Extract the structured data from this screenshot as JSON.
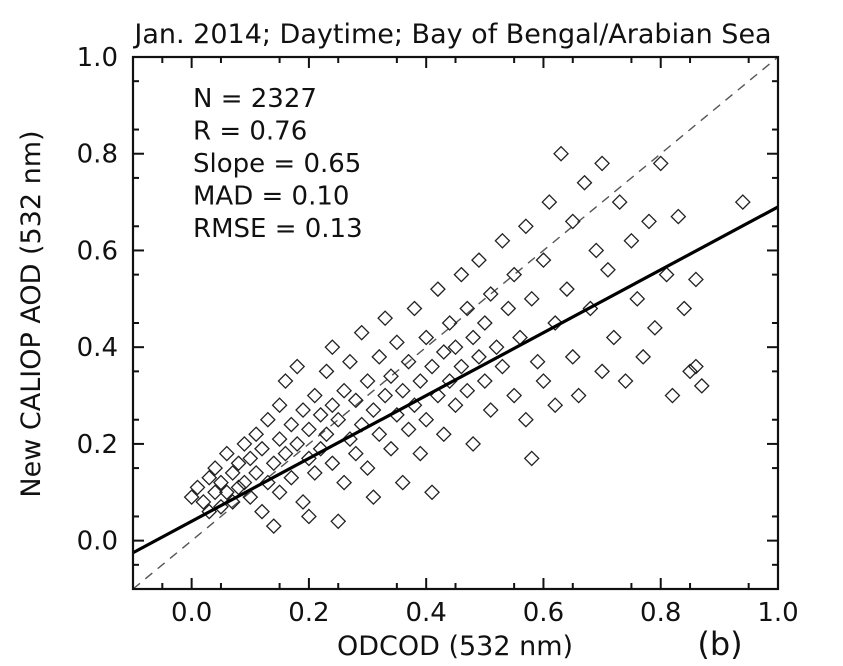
{
  "chart_data": {
    "type": "scatter",
    "title": "Jan. 2014; Daytime; Bay of Bengal/Arabian Sea",
    "xlabel": "ODCOD (532 nm)",
    "ylabel": "New CALIOP AOD (532 nm)",
    "xlim": [
      -0.1,
      1.0
    ],
    "ylim": [
      -0.1,
      1.0
    ],
    "x_ticks": [
      0.0,
      0.2,
      0.4,
      0.6,
      0.8,
      1.0
    ],
    "y_ticks": [
      0.0,
      0.2,
      0.4,
      0.6,
      0.8,
      1.0
    ],
    "x_tick_labels": [
      "0.0",
      "0.2",
      "0.4",
      "0.6",
      "0.8",
      "1.0"
    ],
    "y_tick_labels": [
      "0.0",
      "0.2",
      "0.4",
      "0.6",
      "0.8",
      "1.0"
    ],
    "stats": [
      "N = 2327",
      "R = 0.76",
      "Slope = 0.65",
      "MAD = 0.10",
      "RMSE = 0.13"
    ],
    "panel_label": "(b)",
    "marker": "open-diamond",
    "grid": false,
    "fit_line": {
      "slope": 0.65,
      "intercept": 0.04,
      "x_range": [
        -0.1,
        1.0
      ]
    },
    "reference_line": {
      "type": "1:1",
      "x_range": [
        -0.1,
        1.0
      ]
    },
    "points": [
      [
        0.0,
        0.09
      ],
      [
        0.01,
        0.11
      ],
      [
        0.02,
        0.08
      ],
      [
        0.03,
        0.13
      ],
      [
        0.03,
        0.06
      ],
      [
        0.04,
        0.1
      ],
      [
        0.04,
        0.15
      ],
      [
        0.05,
        0.12
      ],
      [
        0.05,
        0.07
      ],
      [
        0.06,
        0.18
      ],
      [
        0.06,
        0.1
      ],
      [
        0.07,
        0.14
      ],
      [
        0.07,
        0.08
      ],
      [
        0.08,
        0.16
      ],
      [
        0.08,
        0.11
      ],
      [
        0.09,
        0.2
      ],
      [
        0.09,
        0.12
      ],
      [
        0.1,
        0.09
      ],
      [
        0.1,
        0.17
      ],
      [
        0.11,
        0.14
      ],
      [
        0.11,
        0.22
      ],
      [
        0.12,
        0.06
      ],
      [
        0.12,
        0.19
      ],
      [
        0.13,
        0.12
      ],
      [
        0.13,
        0.25
      ],
      [
        0.14,
        0.03
      ],
      [
        0.14,
        0.16
      ],
      [
        0.15,
        0.21
      ],
      [
        0.15,
        0.28
      ],
      [
        0.15,
        0.1
      ],
      [
        0.16,
        0.18
      ],
      [
        0.16,
        0.33
      ],
      [
        0.17,
        0.24
      ],
      [
        0.17,
        0.13
      ],
      [
        0.18,
        0.36
      ],
      [
        0.18,
        0.2
      ],
      [
        0.19,
        0.27
      ],
      [
        0.19,
        0.08
      ],
      [
        0.2,
        0.17
      ],
      [
        0.2,
        0.23
      ],
      [
        0.2,
        0.05
      ],
      [
        0.21,
        0.3
      ],
      [
        0.21,
        0.14
      ],
      [
        0.22,
        0.26
      ],
      [
        0.22,
        0.19
      ],
      [
        0.23,
        0.35
      ],
      [
        0.23,
        0.22
      ],
      [
        0.24,
        0.4
      ],
      [
        0.24,
        0.16
      ],
      [
        0.24,
        0.28
      ],
      [
        0.25,
        0.04
      ],
      [
        0.25,
        0.25
      ],
      [
        0.26,
        0.31
      ],
      [
        0.26,
        0.12
      ],
      [
        0.27,
        0.21
      ],
      [
        0.27,
        0.37
      ],
      [
        0.28,
        0.18
      ],
      [
        0.28,
        0.29
      ],
      [
        0.29,
        0.43
      ],
      [
        0.29,
        0.24
      ],
      [
        0.3,
        0.15
      ],
      [
        0.3,
        0.33
      ],
      [
        0.31,
        0.27
      ],
      [
        0.31,
        0.09
      ],
      [
        0.32,
        0.38
      ],
      [
        0.32,
        0.22
      ],
      [
        0.33,
        0.3
      ],
      [
        0.33,
        0.46
      ],
      [
        0.34,
        0.19
      ],
      [
        0.34,
        0.34
      ],
      [
        0.35,
        0.26
      ],
      [
        0.35,
        0.41
      ],
      [
        0.36,
        0.12
      ],
      [
        0.36,
        0.31
      ],
      [
        0.37,
        0.23
      ],
      [
        0.37,
        0.37
      ],
      [
        0.38,
        0.48
      ],
      [
        0.38,
        0.28
      ],
      [
        0.39,
        0.33
      ],
      [
        0.39,
        0.18
      ],
      [
        0.4,
        0.42
      ],
      [
        0.4,
        0.25
      ],
      [
        0.41,
        0.36
      ],
      [
        0.41,
        0.1
      ],
      [
        0.42,
        0.3
      ],
      [
        0.42,
        0.52
      ],
      [
        0.43,
        0.39
      ],
      [
        0.43,
        0.22
      ],
      [
        0.44,
        0.45
      ],
      [
        0.44,
        0.33
      ],
      [
        0.45,
        0.28
      ],
      [
        0.45,
        0.4
      ],
      [
        0.46,
        0.55
      ],
      [
        0.46,
        0.36
      ],
      [
        0.47,
        0.31
      ],
      [
        0.47,
        0.48
      ],
      [
        0.48,
        0.42
      ],
      [
        0.48,
        0.2
      ],
      [
        0.49,
        0.38
      ],
      [
        0.49,
        0.58
      ],
      [
        0.5,
        0.45
      ],
      [
        0.5,
        0.33
      ],
      [
        0.51,
        0.51
      ],
      [
        0.51,
        0.27
      ],
      [
        0.52,
        0.4
      ],
      [
        0.53,
        0.62
      ],
      [
        0.53,
        0.36
      ],
      [
        0.54,
        0.48
      ],
      [
        0.55,
        0.3
      ],
      [
        0.55,
        0.55
      ],
      [
        0.56,
        0.42
      ],
      [
        0.57,
        0.65
      ],
      [
        0.57,
        0.25
      ],
      [
        0.58,
        0.5
      ],
      [
        0.58,
        0.17
      ],
      [
        0.59,
        0.37
      ],
      [
        0.6,
        0.58
      ],
      [
        0.6,
        0.33
      ],
      [
        0.61,
        0.7
      ],
      [
        0.62,
        0.45
      ],
      [
        0.62,
        0.28
      ],
      [
        0.63,
        0.8
      ],
      [
        0.64,
        0.52
      ],
      [
        0.65,
        0.38
      ],
      [
        0.65,
        0.66
      ],
      [
        0.66,
        0.3
      ],
      [
        0.67,
        0.74
      ],
      [
        0.68,
        0.48
      ],
      [
        0.69,
        0.6
      ],
      [
        0.7,
        0.35
      ],
      [
        0.7,
        0.78
      ],
      [
        0.71,
        0.56
      ],
      [
        0.72,
        0.42
      ],
      [
        0.73,
        0.7
      ],
      [
        0.74,
        0.33
      ],
      [
        0.75,
        0.62
      ],
      [
        0.76,
        0.5
      ],
      [
        0.77,
        0.38
      ],
      [
        0.78,
        0.66
      ],
      [
        0.79,
        0.44
      ],
      [
        0.8,
        0.78
      ],
      [
        0.81,
        0.55
      ],
      [
        0.82,
        0.3
      ],
      [
        0.83,
        0.67
      ],
      [
        0.84,
        0.48
      ],
      [
        0.85,
        0.35
      ],
      [
        0.86,
        0.54
      ],
      [
        0.86,
        0.36
      ],
      [
        0.87,
        0.32
      ],
      [
        0.94,
        0.7
      ]
    ]
  }
}
